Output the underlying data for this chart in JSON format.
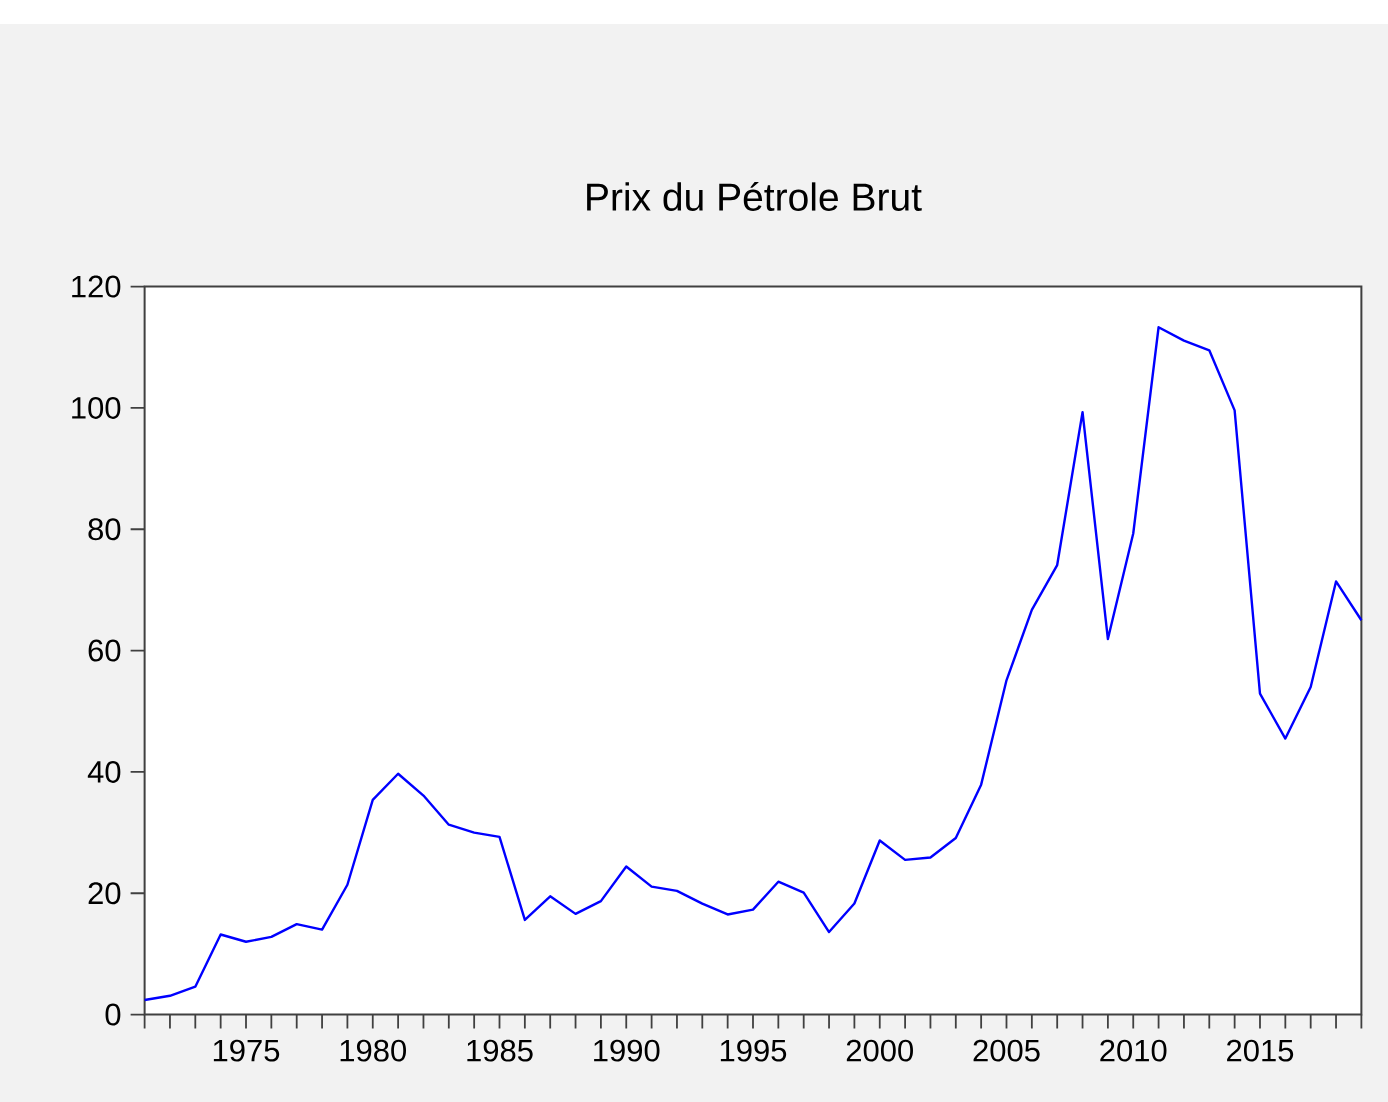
{
  "chart_data": {
    "type": "line",
    "title": "Prix du Pétrole Brut",
    "x": [
      1971,
      1972,
      1973,
      1974,
      1975,
      1976,
      1977,
      1978,
      1979,
      1980,
      1981,
      1982,
      1983,
      1984,
      1985,
      1986,
      1987,
      1988,
      1989,
      1990,
      1991,
      1992,
      1993,
      1994,
      1995,
      1996,
      1997,
      1998,
      1999,
      2000,
      2001,
      2002,
      2003,
      2004,
      2005,
      2006,
      2007,
      2008,
      2009,
      2010,
      2011,
      2012,
      2013,
      2014,
      2015,
      2016,
      2017,
      2018,
      2019
    ],
    "values": [
      2.4,
      3.1,
      4.6,
      13.2,
      12.0,
      12.8,
      14.9,
      14.0,
      21.4,
      35.4,
      39.7,
      36.1,
      31.3,
      30.0,
      29.3,
      15.6,
      19.5,
      16.6,
      18.7,
      24.4,
      21.1,
      20.4,
      18.3,
      16.5,
      17.3,
      21.9,
      20.1,
      13.6,
      18.3,
      28.7,
      25.5,
      25.9,
      29.1,
      37.9,
      55.1,
      66.7,
      74.1,
      99.3,
      61.9,
      79.3,
      113.3,
      111.1,
      109.5,
      99.6,
      52.9,
      45.5,
      54.0,
      71.4,
      65.0
    ],
    "color": "#0000ff",
    "line_style": "solid",
    "marker": "none",
    "xlim": [
      1971,
      2019
    ],
    "ylim": [
      0,
      120
    ],
    "xticks": [
      1975,
      1980,
      1985,
      1990,
      1995,
      2000,
      2005,
      2010,
      2015
    ],
    "yticks": [
      0,
      20,
      40,
      60,
      80,
      100,
      120
    ]
  }
}
